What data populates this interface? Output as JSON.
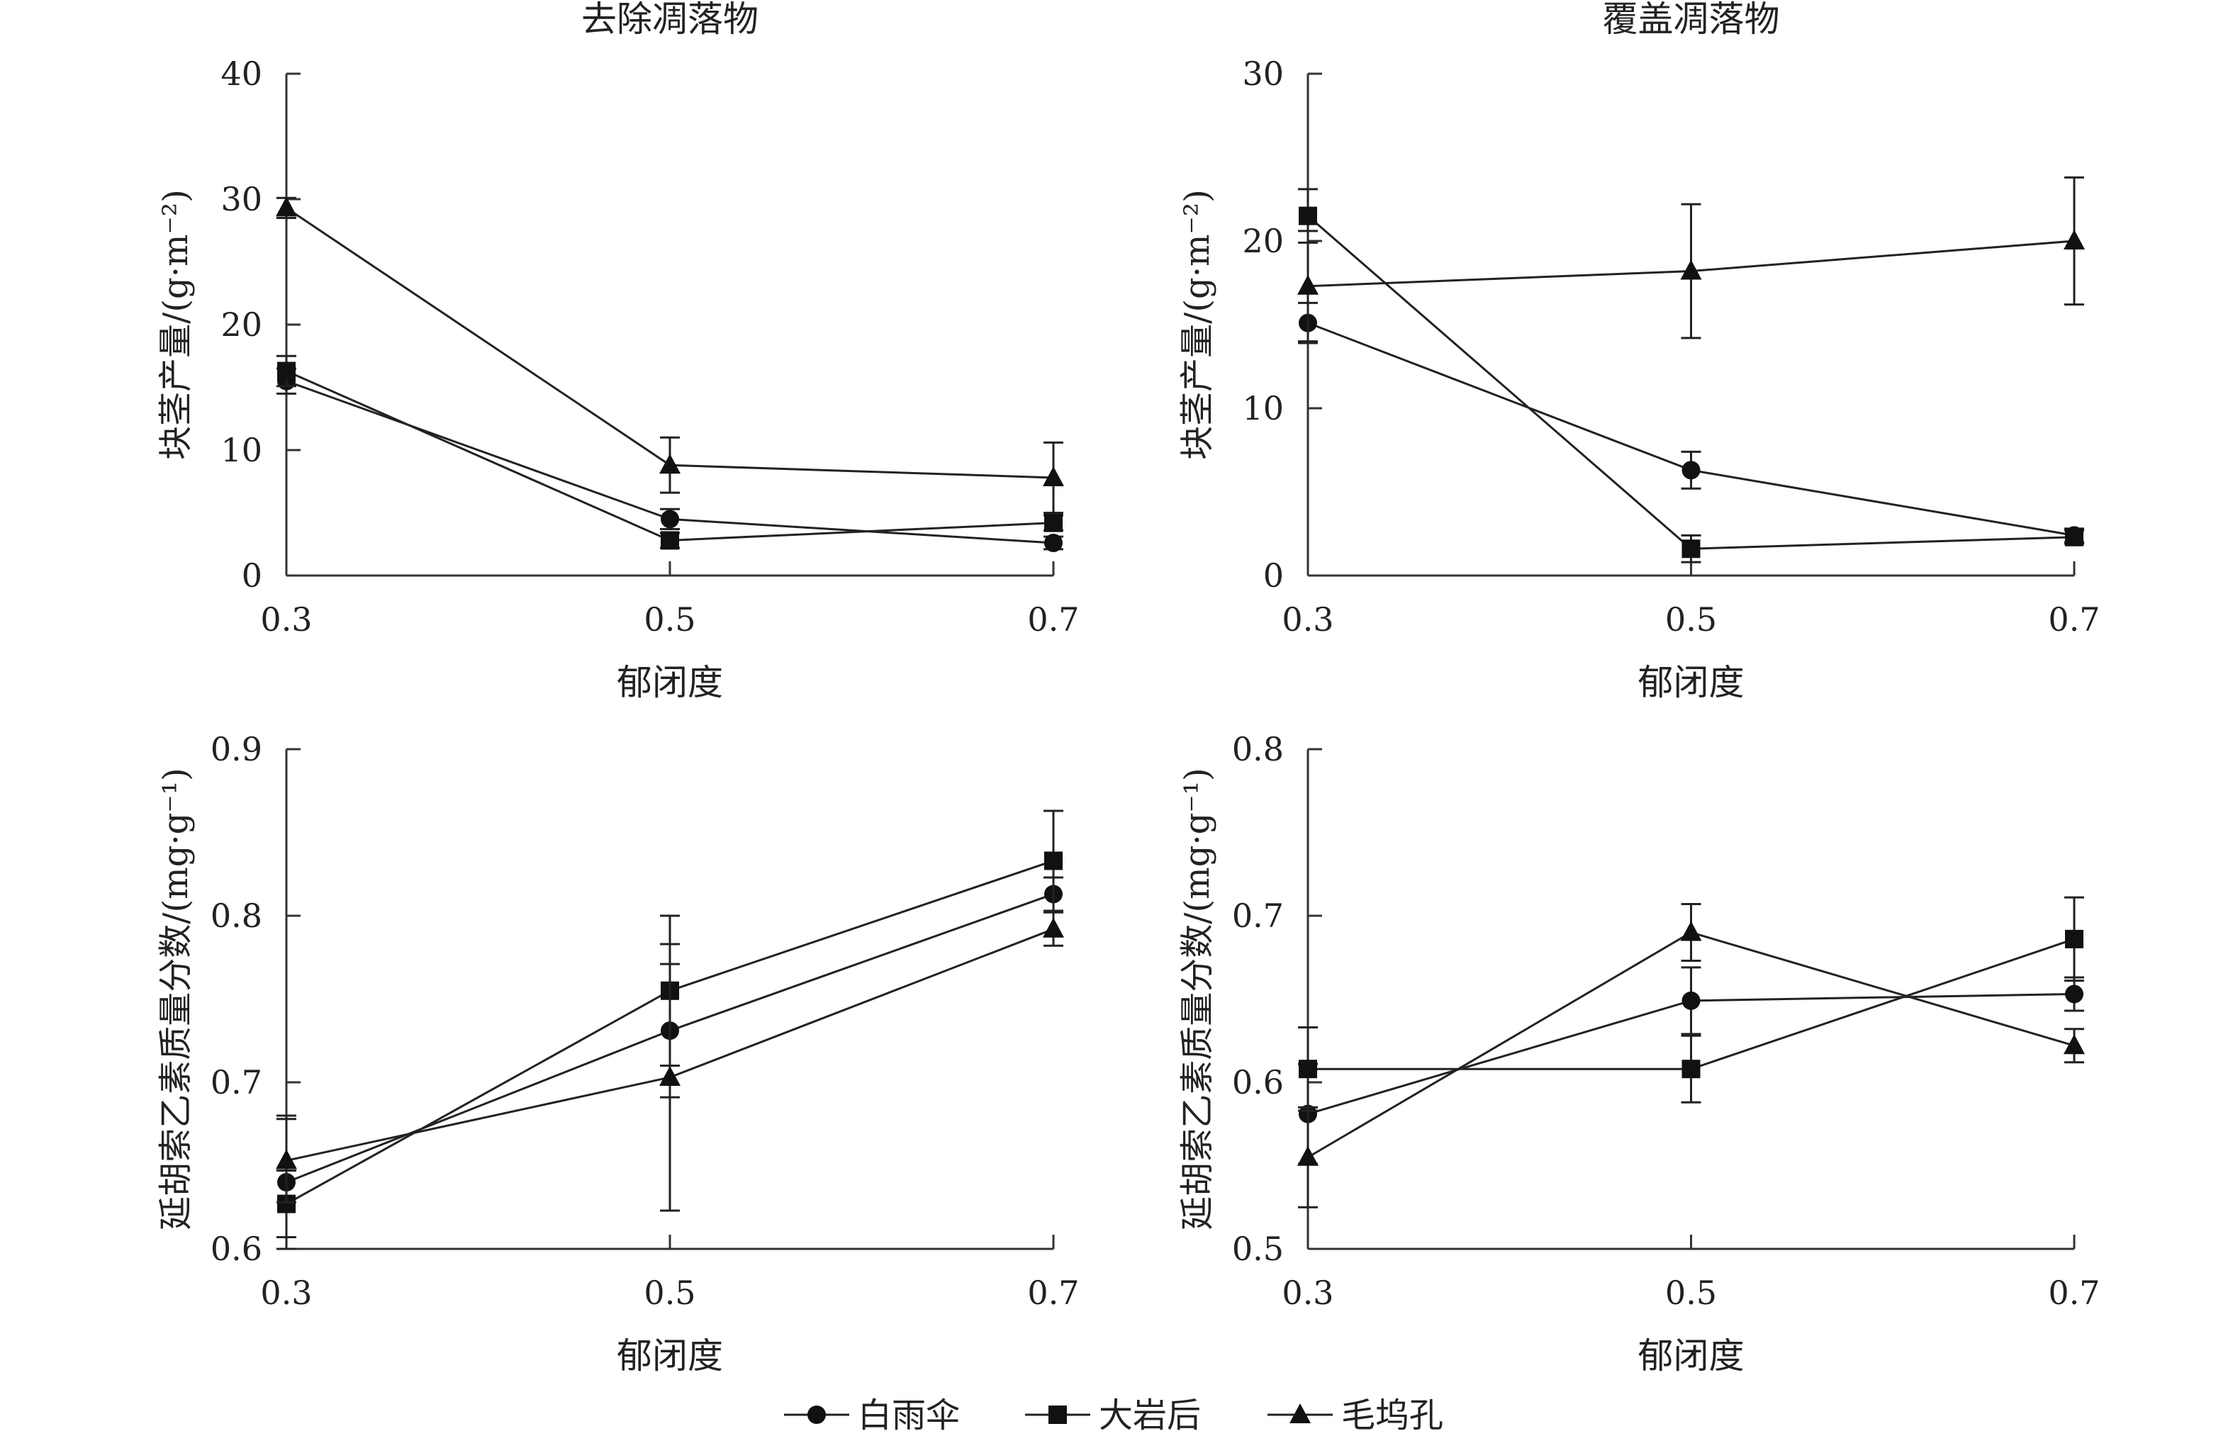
{
  "chart_data": [
    {
      "type": "line",
      "title": "去除凋落物",
      "xlabel": "郁闭度",
      "ylabel": "块茎产量/(g·m⁻²)",
      "x": [
        0.3,
        0.5,
        0.7
      ],
      "xticks": [
        "0.3",
        "0.5",
        "0.7"
      ],
      "ylim": [
        0,
        40
      ],
      "yticks": [
        0,
        10,
        20,
        30,
        40
      ],
      "ytick_labels": [
        "0",
        "10",
        "20",
        "30",
        "40"
      ],
      "series": [
        {
          "name": "白雨伞",
          "marker": "circle",
          "values": [
            15.5,
            4.5,
            2.6
          ],
          "errors": [
            1.0,
            0.8,
            0.5
          ]
        },
        {
          "name": "大岩后",
          "marker": "square",
          "values": [
            16.3,
            2.8,
            4.2
          ],
          "errors": [
            1.2,
            0.6,
            0.6
          ]
        },
        {
          "name": "毛坞孔",
          "marker": "triangle",
          "values": [
            29.3,
            8.8,
            7.8
          ],
          "errors": [
            0.8,
            2.2,
            2.8
          ]
        }
      ]
    },
    {
      "type": "line",
      "title": "覆盖凋落物",
      "xlabel": "郁闭度",
      "ylabel": "块茎产量/(g·m⁻²)",
      "x": [
        0.3,
        0.5,
        0.7
      ],
      "xticks": [
        "0.3",
        "0.5",
        "0.7"
      ],
      "ylim": [
        0,
        30
      ],
      "yticks": [
        0,
        10,
        20,
        30
      ],
      "ytick_labels": [
        "0",
        "10",
        "20",
        "30"
      ],
      "series": [
        {
          "name": "白雨伞",
          "marker": "circle",
          "values": [
            15.1,
            6.3,
            2.4
          ],
          "errors": [
            1.2,
            1.1,
            0.4
          ]
        },
        {
          "name": "大岩后",
          "marker": "square",
          "values": [
            21.5,
            1.6,
            2.3
          ],
          "errors": [
            1.6,
            0.8,
            0.4
          ]
        },
        {
          "name": "毛坞孔",
          "marker": "triangle",
          "values": [
            17.3,
            18.2,
            20.0
          ],
          "errors": [
            3.3,
            4.0,
            3.8
          ]
        }
      ]
    },
    {
      "type": "line",
      "title": "",
      "xlabel": "郁闭度",
      "ylabel": "延胡索乙素质量分数/(mg·g⁻¹)",
      "x": [
        0.3,
        0.5,
        0.7
      ],
      "xticks": [
        "0.3",
        "0.5",
        "0.7"
      ],
      "ylim": [
        0.6,
        0.9
      ],
      "yticks": [
        0.6,
        0.7,
        0.8,
        0.9
      ],
      "ytick_labels": [
        "0.6",
        "0.7",
        "0.8",
        "0.9"
      ],
      "series": [
        {
          "name": "白雨伞",
          "marker": "circle",
          "values": [
            0.64,
            0.731,
            0.813
          ],
          "errors": [
            0.04,
            0.04,
            0.01
          ]
        },
        {
          "name": "大岩后",
          "marker": "square",
          "values": [
            0.627,
            0.755,
            0.833
          ],
          "errors": [
            0.02,
            0.045,
            0.03
          ]
        },
        {
          "name": "毛坞孔",
          "marker": "triangle",
          "values": [
            0.653,
            0.703,
            0.792
          ],
          "errors": [
            0.025,
            0.08,
            0.01
          ]
        }
      ]
    },
    {
      "type": "line",
      "title": "",
      "xlabel": "郁闭度",
      "ylabel": "延胡索乙素质量分数/(mg·g⁻¹)",
      "x": [
        0.3,
        0.5,
        0.7
      ],
      "xticks": [
        "0.3",
        "0.5",
        "0.7"
      ],
      "ylim": [
        0.5,
        0.8
      ],
      "yticks": [
        0.5,
        0.6,
        0.7,
        0.8
      ],
      "ytick_labels": [
        "0.5",
        "0.6",
        "0.7",
        "0.8"
      ],
      "series": [
        {
          "name": "白雨伞",
          "marker": "circle",
          "values": [
            0.581,
            0.649,
            0.653
          ],
          "errors": [
            0.03,
            0.02,
            0.01
          ]
        },
        {
          "name": "大岩后",
          "marker": "square",
          "values": [
            0.608,
            0.608,
            0.686
          ],
          "errors": [
            0.025,
            0.02,
            0.025
          ]
        },
        {
          "name": "毛坞孔",
          "marker": "triangle",
          "values": [
            0.555,
            0.69,
            0.622
          ],
          "errors": [
            0.03,
            0.017,
            0.01
          ]
        }
      ]
    }
  ],
  "legend": {
    "placement": "bottom-center",
    "items": [
      {
        "name": "白雨伞",
        "marker": "circle"
      },
      {
        "name": "大岩后",
        "marker": "square"
      },
      {
        "name": "毛坞孔",
        "marker": "triangle"
      }
    ]
  }
}
